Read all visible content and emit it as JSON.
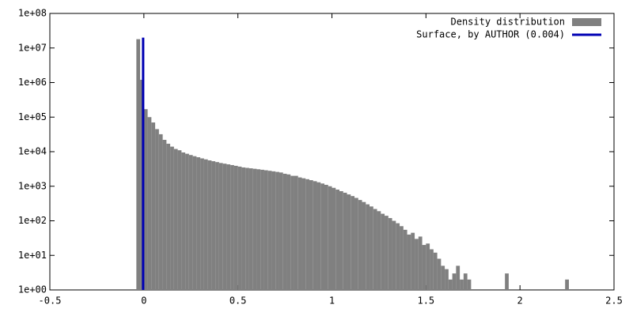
{
  "chart_data": {
    "type": "histogram",
    "log_y": true,
    "xlim": [
      -0.5,
      2.5
    ],
    "xticks": [
      -0.5,
      0,
      0.5,
      1,
      1.5,
      2,
      2.5
    ],
    "ylim": [
      1,
      100000000
    ],
    "yticks": [
      {
        "value": 1,
        "label": "1e+00"
      },
      {
        "value": 10,
        "label": "1e+01"
      },
      {
        "value": 100,
        "label": "1e+02"
      },
      {
        "value": 1000,
        "label": "1e+03"
      },
      {
        "value": 10000,
        "label": "1e+04"
      },
      {
        "value": 100000,
        "label": "1e+05"
      },
      {
        "value": 1000000,
        "label": "1e+06"
      },
      {
        "value": 10000000,
        "label": "1e+07"
      },
      {
        "value": 100000000,
        "label": "1e+08"
      }
    ],
    "legend": "top-right",
    "bins": [
      -0.04,
      -0.02,
      0,
      0.02,
      0.04,
      0.06,
      0.08,
      0.1,
      0.12,
      0.14,
      0.16,
      0.18,
      0.2,
      0.22,
      0.24,
      0.26,
      0.28,
      0.3,
      0.32,
      0.34,
      0.36,
      0.38,
      0.4,
      0.42,
      0.44,
      0.46,
      0.48,
      0.5,
      0.52,
      0.54,
      0.56,
      0.58,
      0.6,
      0.62,
      0.64,
      0.66,
      0.68,
      0.7,
      0.72,
      0.74,
      0.76,
      0.78,
      0.8,
      0.82,
      0.84,
      0.86,
      0.88,
      0.9,
      0.92,
      0.94,
      0.96,
      0.98,
      1,
      1.02,
      1.04,
      1.06,
      1.08,
      1.1,
      1.12,
      1.14,
      1.16,
      1.18,
      1.2,
      1.22,
      1.24,
      1.26,
      1.28,
      1.3,
      1.32,
      1.34,
      1.36,
      1.38,
      1.4,
      1.42,
      1.44,
      1.46,
      1.48,
      1.5,
      1.52,
      1.54,
      1.56,
      1.58,
      1.6,
      1.62,
      1.64,
      1.66,
      1.68,
      1.7,
      1.72,
      1.74,
      1.76,
      1.78,
      1.8,
      1.82,
      1.84,
      1.86,
      1.88,
      1.9,
      1.92,
      1.94,
      1.96,
      1.98,
      2,
      2.02,
      2.04,
      2.06,
      2.08,
      2.1,
      2.12,
      2.14,
      2.16,
      2.18,
      2.2,
      2.22,
      2.24,
      2.26
    ],
    "series": [
      {
        "name": "Density distribution",
        "color": "#808080",
        "values": [
          18000000,
          1200000,
          170000,
          100000,
          70000,
          45000,
          32000,
          22000,
          17000,
          14000,
          12000,
          11000,
          9500,
          8700,
          8000,
          7400,
          6900,
          6400,
          6000,
          5600,
          5300,
          5000,
          4700,
          4500,
          4300,
          4100,
          3900,
          3700,
          3500,
          3400,
          3300,
          3200,
          3100,
          3000,
          2900,
          2800,
          2700,
          2600,
          2500,
          2300,
          2200,
          2000,
          2000,
          1800,
          1700,
          1600,
          1500,
          1400,
          1300,
          1200,
          1100,
          1000,
          900,
          800,
          720,
          650,
          580,
          520,
          460,
          400,
          350,
          300,
          260,
          220,
          190,
          160,
          140,
          120,
          100,
          85,
          70,
          55,
          40,
          45,
          30,
          35,
          20,
          22,
          15,
          12,
          8,
          5,
          4,
          2,
          3,
          5,
          2,
          3,
          2,
          0,
          0,
          0,
          0,
          0,
          0,
          0,
          0,
          0,
          3,
          0,
          0,
          0,
          0,
          0,
          0,
          0,
          0,
          0,
          0,
          0,
          0,
          0,
          0,
          0,
          2
        ]
      },
      {
        "name": "Surface, by AUTHOR (0.004)",
        "type": "line",
        "color": "#0000b4",
        "x": [
          -0.004,
          -0.004
        ],
        "values": [
          1,
          20000000
        ]
      }
    ]
  }
}
